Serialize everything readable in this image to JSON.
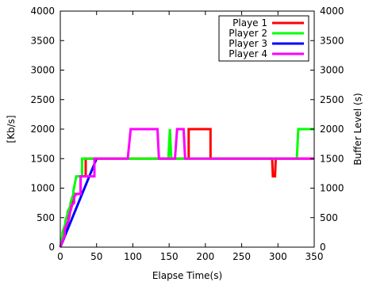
{
  "chart_data": {
    "type": "line",
    "xlabel": "Elapse Time(s)",
    "ylabel": "[Kb/s]",
    "y2label": "Buffer Level (s)",
    "xlim": [
      0,
      350
    ],
    "ylim": [
      0,
      4000
    ],
    "y2lim": [
      0,
      4000
    ],
    "xticks": [
      0,
      50,
      100,
      150,
      200,
      250,
      300,
      350
    ],
    "yticks": [
      0,
      500,
      1000,
      1500,
      2000,
      2500,
      3000,
      3500,
      4000
    ],
    "y2ticks": [
      0,
      500,
      1000,
      1500,
      2000,
      2500,
      3000,
      3500,
      4000
    ],
    "grid": false,
    "legend_position": "top-right",
    "series": [
      {
        "name": "Playe 1",
        "color": "#ff0000",
        "x": [
          0,
          5,
          5,
          10,
          10,
          13,
          13,
          16,
          16,
          20,
          20,
          28,
          28,
          35,
          35,
          175,
          177,
          177,
          205,
          207,
          207,
          292,
          293,
          296,
          297,
          298,
          345,
          350
        ],
        "y": [
          0,
          150,
          200,
          350,
          400,
          550,
          600,
          700,
          750,
          900,
          900,
          900,
          1200,
          1200,
          1500,
          1500,
          1500,
          2000,
          2000,
          2000,
          1500,
          1500,
          1200,
          1200,
          1500,
          1500,
          1500,
          1500
        ]
      },
      {
        "name": "Player 2",
        "color": "#00ff00",
        "x": [
          0,
          3,
          3,
          7,
          7,
          10,
          10,
          14,
          14,
          18,
          18,
          22,
          22,
          30,
          30,
          147,
          149,
          151,
          153,
          326,
          328,
          350
        ],
        "y": [
          0,
          200,
          250,
          400,
          450,
          550,
          600,
          700,
          750,
          900,
          950,
          1200,
          1200,
          1200,
          1500,
          1500,
          1500,
          2000,
          1500,
          1500,
          2000,
          2000
        ]
      },
      {
        "name": "Player 3",
        "color": "#0000ff",
        "x": [
          0,
          50
        ],
        "y": [
          0,
          1500
        ]
      },
      {
        "name": "Player 4",
        "color": "#ff00ff",
        "x": [
          0,
          6,
          6,
          11,
          11,
          15,
          15,
          19,
          19,
          22,
          22,
          28,
          28,
          34,
          34,
          47,
          47,
          93,
          97,
          134,
          136,
          158,
          161,
          170,
          172,
          350
        ],
        "y": [
          0,
          200,
          300,
          450,
          500,
          650,
          700,
          750,
          850,
          900,
          900,
          900,
          1200,
          1200,
          1200,
          1200,
          1500,
          1500,
          2000,
          2000,
          1500,
          1500,
          2000,
          2000,
          1500,
          1500
        ]
      }
    ]
  }
}
